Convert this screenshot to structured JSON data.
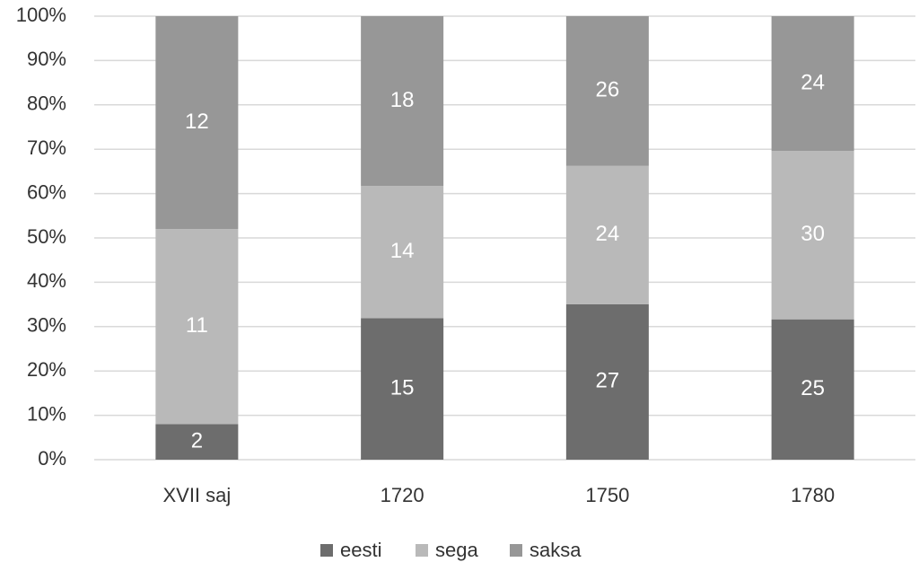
{
  "chart_data": {
    "type": "bar",
    "stacking": "percent",
    "categories": [
      "XVII saj",
      "1720",
      "1750",
      "1780"
    ],
    "series": [
      {
        "name": "eesti",
        "color": "#6d6d6d",
        "values": [
          2,
          15,
          27,
          25
        ]
      },
      {
        "name": "sega",
        "color": "#b9b9b9",
        "values": [
          11,
          14,
          24,
          30
        ]
      },
      {
        "name": "saksa",
        "color": "#979797",
        "values": [
          12,
          18,
          26,
          24
        ]
      }
    ],
    "ylim": [
      0,
      100
    ],
    "yticks": [
      {
        "value": 0,
        "label": "0%"
      },
      {
        "value": 10,
        "label": "10%"
      },
      {
        "value": 20,
        "label": "20%"
      },
      {
        "value": 30,
        "label": "30%"
      },
      {
        "value": 40,
        "label": "40%"
      },
      {
        "value": 50,
        "label": "50%"
      },
      {
        "value": 60,
        "label": "60%"
      },
      {
        "value": 70,
        "label": "70%"
      },
      {
        "value": 80,
        "label": "80%"
      },
      {
        "value": 90,
        "label": "90%"
      },
      {
        "value": 100,
        "label": "100%"
      }
    ],
    "grid": true,
    "legend": "bottom"
  }
}
